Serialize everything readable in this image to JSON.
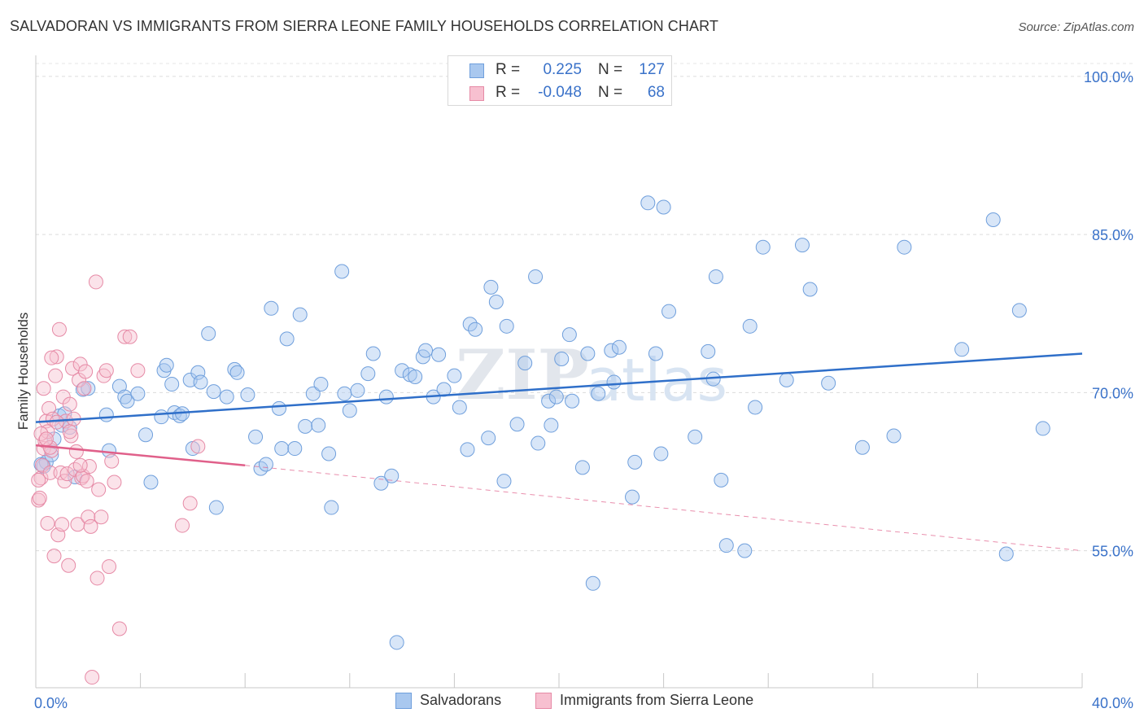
{
  "title": "SALVADORAN VS IMMIGRANTS FROM SIERRA LEONE FAMILY HOUSEHOLDS CORRELATION CHART",
  "source": "Source: ZipAtlas.com",
  "watermark": {
    "zip": "ZIP",
    "atlas": "atlas"
  },
  "stats": [
    {
      "r_label": "R =",
      "r_value": "0.225",
      "n_label": "N =",
      "n_value": "127",
      "color": "#a9c8ef",
      "border": "#6f9fdc"
    },
    {
      "r_label": "R =",
      "r_value": "-0.048",
      "n_label": "N =",
      "n_value": "68",
      "color": "#f7c0d0",
      "border": "#e68aa6"
    }
  ],
  "legend": [
    {
      "label": "Salvadorans",
      "color": "#a9c8ef",
      "border": "#6f9fdc"
    },
    {
      "label": "Immigrants from Sierra Leone",
      "color": "#f7c0d0",
      "border": "#e68aa6"
    }
  ],
  "colors": {
    "blue_fill": "#a9c8ef",
    "blue_stroke": "#6f9fdc",
    "blue_line": "#2f6fc9",
    "pink_fill": "#f7c0d0",
    "pink_stroke": "#e68aa6",
    "pink_line": "#e0608a",
    "axis_label": "#3a72c9"
  },
  "chart_data": {
    "type": "scatter",
    "ylabel": "Family Households",
    "xlim": [
      0,
      40
    ],
    "ylim": [
      42,
      102
    ],
    "x_tick_labels": [
      {
        "x": 0,
        "label": "0.0%"
      },
      {
        "x": 40,
        "label": "40.0%"
      }
    ],
    "y_tick_labels": [
      {
        "y": 100,
        "label": "100.0%"
      },
      {
        "y": 85,
        "label": "85.0%"
      },
      {
        "y": 70,
        "label": "70.0%"
      },
      {
        "y": 55,
        "label": "55.0%"
      }
    ],
    "grid_y": [
      100,
      85,
      70,
      55
    ],
    "x_minor_ticks": [
      0,
      4,
      8,
      12,
      16,
      20,
      24,
      28,
      32,
      36,
      40
    ],
    "series": [
      {
        "name": "Salvadorans",
        "trend": {
          "x0": 0,
          "y0": 67.2,
          "x1": 40,
          "y1": 73.7
        },
        "points": [
          [
            0.3,
            63.0
          ],
          [
            0.4,
            63.4
          ],
          [
            0.6,
            64.1
          ],
          [
            0.7,
            65.6
          ],
          [
            0.9,
            67.8
          ],
          [
            1.0,
            66.9
          ],
          [
            1.1,
            68.0
          ],
          [
            1.3,
            66.7
          ],
          [
            1.5,
            62.0
          ],
          [
            1.8,
            70.3
          ],
          [
            2.0,
            70.4
          ],
          [
            2.7,
            67.9
          ],
          [
            2.8,
            64.5
          ],
          [
            3.2,
            70.6
          ],
          [
            3.4,
            69.6
          ],
          [
            3.5,
            69.2
          ],
          [
            3.9,
            69.9
          ],
          [
            4.2,
            66.0
          ],
          [
            4.4,
            61.5
          ],
          [
            4.8,
            67.7
          ],
          [
            4.9,
            72.1
          ],
          [
            5.0,
            72.6
          ],
          [
            5.2,
            70.8
          ],
          [
            5.3,
            68.1
          ],
          [
            5.5,
            67.8
          ],
          [
            5.6,
            68.0
          ],
          [
            5.9,
            71.2
          ],
          [
            6.0,
            64.7
          ],
          [
            6.2,
            71.9
          ],
          [
            6.3,
            71.0
          ],
          [
            6.6,
            75.6
          ],
          [
            6.8,
            70.1
          ],
          [
            6.9,
            59.1
          ],
          [
            7.3,
            69.6
          ],
          [
            7.6,
            72.2
          ],
          [
            7.7,
            71.9
          ],
          [
            8.1,
            69.8
          ],
          [
            8.4,
            65.8
          ],
          [
            8.6,
            62.8
          ],
          [
            8.8,
            63.2
          ],
          [
            9.0,
            78.0
          ],
          [
            9.3,
            68.5
          ],
          [
            9.4,
            64.7
          ],
          [
            9.6,
            75.1
          ],
          [
            9.9,
            64.7
          ],
          [
            10.1,
            77.4
          ],
          [
            10.3,
            66.8
          ],
          [
            10.6,
            69.9
          ],
          [
            10.8,
            66.9
          ],
          [
            10.9,
            70.8
          ],
          [
            11.2,
            64.2
          ],
          [
            11.3,
            59.1
          ],
          [
            11.7,
            81.5
          ],
          [
            11.8,
            69.9
          ],
          [
            12.0,
            68.3
          ],
          [
            12.3,
            70.2
          ],
          [
            12.7,
            71.8
          ],
          [
            12.9,
            73.7
          ],
          [
            13.2,
            61.4
          ],
          [
            13.4,
            69.6
          ],
          [
            13.6,
            62.1
          ],
          [
            13.8,
            46.3
          ],
          [
            14.0,
            72.1
          ],
          [
            14.3,
            71.7
          ],
          [
            14.5,
            71.5
          ],
          [
            14.8,
            73.4
          ],
          [
            14.9,
            74.0
          ],
          [
            15.2,
            69.6
          ],
          [
            15.4,
            73.6
          ],
          [
            15.6,
            70.3
          ],
          [
            16.0,
            71.6
          ],
          [
            16.2,
            68.6
          ],
          [
            16.5,
            64.6
          ],
          [
            16.6,
            76.5
          ],
          [
            16.8,
            76.0
          ],
          [
            17.3,
            65.7
          ],
          [
            17.4,
            80.0
          ],
          [
            17.6,
            78.6
          ],
          [
            17.9,
            61.6
          ],
          [
            18.0,
            76.3
          ],
          [
            18.4,
            67.0
          ],
          [
            18.7,
            72.8
          ],
          [
            19.1,
            81.0
          ],
          [
            19.2,
            65.2
          ],
          [
            19.6,
            69.2
          ],
          [
            19.7,
            66.9
          ],
          [
            19.9,
            69.6
          ],
          [
            20.1,
            73.2
          ],
          [
            20.4,
            75.5
          ],
          [
            20.5,
            69.2
          ],
          [
            20.9,
            62.9
          ],
          [
            21.1,
            73.7
          ],
          [
            21.5,
            69.9
          ],
          [
            22.0,
            74.0
          ],
          [
            22.1,
            71.0
          ],
          [
            22.3,
            74.3
          ],
          [
            22.8,
            60.1
          ],
          [
            22.9,
            63.4
          ],
          [
            23.4,
            88.0
          ],
          [
            23.7,
            73.7
          ],
          [
            23.9,
            64.2
          ],
          [
            24.0,
            87.6
          ],
          [
            24.2,
            77.7
          ],
          [
            25.2,
            65.8
          ],
          [
            25.7,
            73.9
          ],
          [
            25.9,
            71.3
          ],
          [
            26.0,
            81.0
          ],
          [
            26.2,
            61.7
          ],
          [
            26.4,
            55.5
          ],
          [
            27.1,
            55.0
          ],
          [
            27.3,
            76.3
          ],
          [
            27.5,
            68.6
          ],
          [
            27.8,
            83.8
          ],
          [
            28.7,
            71.2
          ],
          [
            29.3,
            84.0
          ],
          [
            29.6,
            79.8
          ],
          [
            30.3,
            70.9
          ],
          [
            31.6,
            64.8
          ],
          [
            32.8,
            65.9
          ],
          [
            33.2,
            83.8
          ],
          [
            35.4,
            74.1
          ],
          [
            36.6,
            86.4
          ],
          [
            37.1,
            54.7
          ],
          [
            37.6,
            77.8
          ],
          [
            38.5,
            66.6
          ],
          [
            21.3,
            51.9
          ],
          [
            0.2,
            63.2
          ]
        ]
      },
      {
        "name": "Immigrants from Sierra Leone",
        "trend": {
          "x0": 0,
          "y0": 65.0,
          "x1": 8,
          "y1": 63.1
        },
        "trend_dashed": {
          "x0": 8,
          "y0": 63.1,
          "x1": 40,
          "y1": 55.0
        },
        "points": [
          [
            0.1,
            59.8
          ],
          [
            0.15,
            60.0
          ],
          [
            0.2,
            61.9
          ],
          [
            0.25,
            63.1
          ],
          [
            0.3,
            64.7
          ],
          [
            0.35,
            65.4
          ],
          [
            0.4,
            67.3
          ],
          [
            0.45,
            66.3
          ],
          [
            0.5,
            68.5
          ],
          [
            0.55,
            62.4
          ],
          [
            0.6,
            64.5
          ],
          [
            0.65,
            67.5
          ],
          [
            0.7,
            54.5
          ],
          [
            0.75,
            71.6
          ],
          [
            0.8,
            73.4
          ],
          [
            0.85,
            56.5
          ],
          [
            0.9,
            76.0
          ],
          [
            0.95,
            62.4
          ],
          [
            1.0,
            57.5
          ],
          [
            1.05,
            69.6
          ],
          [
            1.1,
            61.6
          ],
          [
            1.15,
            67.3
          ],
          [
            1.2,
            62.3
          ],
          [
            1.25,
            53.6
          ],
          [
            1.3,
            68.9
          ],
          [
            1.35,
            65.9
          ],
          [
            1.4,
            72.3
          ],
          [
            1.45,
            67.5
          ],
          [
            1.5,
            62.7
          ],
          [
            1.55,
            64.4
          ],
          [
            1.6,
            57.5
          ],
          [
            1.65,
            71.2
          ],
          [
            1.7,
            72.7
          ],
          [
            1.75,
            61.9
          ],
          [
            1.8,
            62.1
          ],
          [
            1.85,
            70.4
          ],
          [
            1.9,
            72.0
          ],
          [
            1.95,
            61.6
          ],
          [
            2.0,
            58.2
          ],
          [
            2.05,
            63.0
          ],
          [
            2.1,
            57.3
          ],
          [
            2.15,
            43.0
          ],
          [
            2.3,
            80.5
          ],
          [
            2.35,
            52.4
          ],
          [
            2.4,
            60.8
          ],
          [
            2.5,
            58.2
          ],
          [
            2.6,
            71.6
          ],
          [
            2.7,
            72.1
          ],
          [
            2.8,
            53.5
          ],
          [
            2.9,
            63.5
          ],
          [
            3.0,
            61.5
          ],
          [
            3.2,
            47.6
          ],
          [
            3.4,
            75.3
          ],
          [
            3.6,
            75.3
          ],
          [
            3.9,
            72.1
          ],
          [
            5.6,
            57.4
          ],
          [
            5.9,
            59.5
          ],
          [
            6.2,
            64.9
          ],
          [
            0.1,
            61.7
          ],
          [
            0.2,
            66.1
          ],
          [
            0.3,
            70.4
          ],
          [
            0.45,
            57.6
          ],
          [
            0.55,
            64.8
          ],
          [
            0.6,
            73.3
          ],
          [
            1.3,
            66.3
          ],
          [
            0.4,
            65.6
          ],
          [
            0.8,
            67.2
          ],
          [
            1.7,
            63.1
          ]
        ]
      }
    ]
  }
}
